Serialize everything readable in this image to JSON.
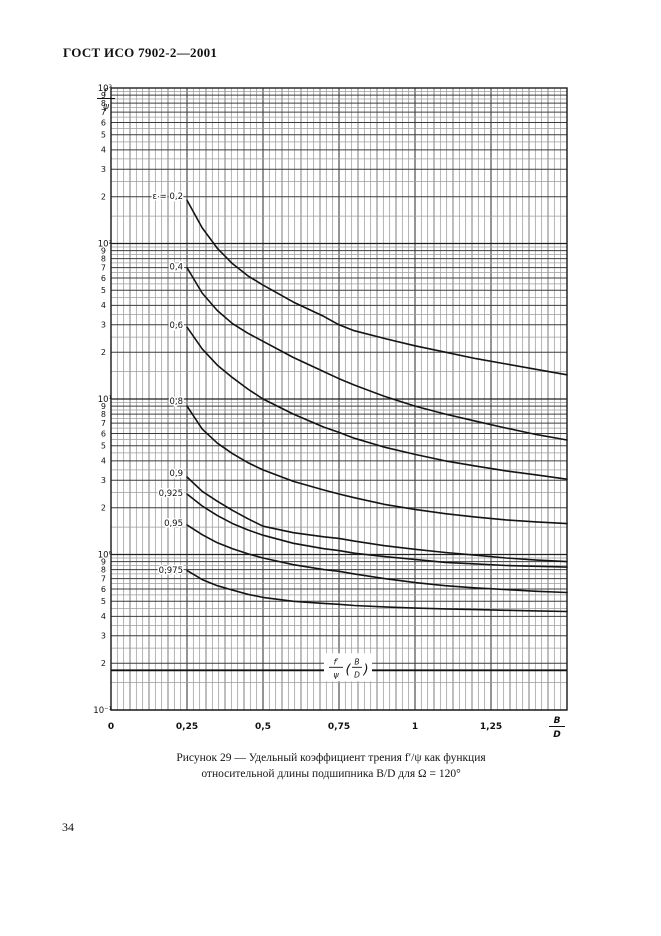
{
  "page": {
    "standard": "ГОСТ ИСО 7902-2—2001",
    "number": "34"
  },
  "caption": {
    "line1": "Рисунок 29 — Удельный коэффициент трения f′/ψ как функция",
    "line2": "относительной длины подшипника B/D для Ω = 120°"
  },
  "chart_data": {
    "type": "line",
    "title": "Рисунок 29 — Удельный коэффициент трения f′/ψ как функция относительной длины подшипника B/D для Ω = 120°",
    "xlabel": "B/D",
    "ylabel": "f′/ψ",
    "x_scale": "linear",
    "y_scale": "log",
    "xlim": [
      0,
      1.5
    ],
    "ylim": [
      0.1,
      1000
    ],
    "grid": true,
    "x_ticks": [
      {
        "b": 0,
        "label": "0"
      },
      {
        "b": 0.25,
        "label": "0,25"
      },
      {
        "b": 0.5,
        "label": "0,5"
      },
      {
        "b": 0.75,
        "label": "0,75"
      },
      {
        "b": 1,
        "label": "1"
      },
      {
        "b": 1.25,
        "label": "1,25"
      }
    ],
    "y_decades": [
      {
        "exp": 3,
        "label": "10³"
      },
      {
        "exp": 2,
        "label": "10²"
      },
      {
        "exp": 1,
        "label": "10¹"
      },
      {
        "exp": 0,
        "label": "10⁰"
      },
      {
        "exp": -1,
        "label": "10⁻¹"
      }
    ],
    "y_minor_digits": [
      9,
      8,
      7,
      6,
      5,
      4,
      3,
      2
    ],
    "y_axis_fraction": {
      "num": "f′",
      "den": "ψ"
    },
    "x_axis_fraction": {
      "num": "B",
      "den": "D"
    },
    "series": [
      {
        "name": "eps-0.2",
        "label": "ε = 0,2",
        "label_v": 202,
        "points": [
          [
            0.25,
            190
          ],
          [
            0.3,
            126
          ],
          [
            0.35,
            93
          ],
          [
            0.4,
            74
          ],
          [
            0.45,
            62
          ],
          [
            0.5,
            54
          ],
          [
            0.6,
            42
          ],
          [
            0.7,
            34
          ],
          [
            0.75,
            30
          ],
          [
            0.8,
            27.5
          ],
          [
            0.9,
            24.5
          ],
          [
            1.0,
            22
          ],
          [
            1.1,
            20
          ],
          [
            1.2,
            18.2
          ],
          [
            1.3,
            16.8
          ],
          [
            1.4,
            15.5
          ],
          [
            1.5,
            14.3
          ]
        ]
      },
      {
        "name": "eps-0.4",
        "label": "0,4",
        "label_v": 71,
        "points": [
          [
            0.25,
            70
          ],
          [
            0.3,
            48
          ],
          [
            0.35,
            37
          ],
          [
            0.4,
            30.5
          ],
          [
            0.45,
            26.5
          ],
          [
            0.5,
            23.5
          ],
          [
            0.6,
            18.5
          ],
          [
            0.7,
            15
          ],
          [
            0.75,
            13.5
          ],
          [
            0.8,
            12.3
          ],
          [
            0.9,
            10.4
          ],
          [
            1.0,
            9.0
          ],
          [
            1.1,
            8.0
          ],
          [
            1.2,
            7.2
          ],
          [
            1.3,
            6.5
          ],
          [
            1.4,
            5.9
          ],
          [
            1.5,
            5.45
          ]
        ]
      },
      {
        "name": "eps-0.6",
        "label": "0,6",
        "label_v": 30,
        "points": [
          [
            0.25,
            29
          ],
          [
            0.3,
            21
          ],
          [
            0.35,
            16.5
          ],
          [
            0.4,
            13.7
          ],
          [
            0.45,
            11.6
          ],
          [
            0.5,
            10
          ],
          [
            0.6,
            8.0
          ],
          [
            0.7,
            6.6
          ],
          [
            0.75,
            6.1
          ],
          [
            0.8,
            5.6
          ],
          [
            0.9,
            4.9
          ],
          [
            1.0,
            4.4
          ],
          [
            1.1,
            4.0
          ],
          [
            1.2,
            3.7
          ],
          [
            1.3,
            3.45
          ],
          [
            1.4,
            3.25
          ],
          [
            1.5,
            3.05
          ]
        ]
      },
      {
        "name": "eps-0.8",
        "label": "0,8",
        "label_v": 9.7,
        "points": [
          [
            0.25,
            9.0
          ],
          [
            0.3,
            6.4
          ],
          [
            0.35,
            5.2
          ],
          [
            0.4,
            4.45
          ],
          [
            0.45,
            3.9
          ],
          [
            0.5,
            3.5
          ],
          [
            0.6,
            2.95
          ],
          [
            0.7,
            2.6
          ],
          [
            0.75,
            2.45
          ],
          [
            0.8,
            2.32
          ],
          [
            0.9,
            2.1
          ],
          [
            1.0,
            1.95
          ],
          [
            1.1,
            1.83
          ],
          [
            1.2,
            1.74
          ],
          [
            1.3,
            1.67
          ],
          [
            1.4,
            1.62
          ],
          [
            1.5,
            1.58
          ]
        ]
      },
      {
        "name": "eps-0.9",
        "label": "0,9",
        "label_v": 3.34,
        "points": [
          [
            0.25,
            3.15
          ],
          [
            0.3,
            2.55
          ],
          [
            0.35,
            2.2
          ],
          [
            0.4,
            1.92
          ],
          [
            0.45,
            1.7
          ],
          [
            0.5,
            1.52
          ],
          [
            0.6,
            1.38
          ],
          [
            0.7,
            1.3
          ],
          [
            0.75,
            1.27
          ],
          [
            0.8,
            1.22
          ],
          [
            0.9,
            1.14
          ],
          [
            1.0,
            1.08
          ],
          [
            1.1,
            1.03
          ],
          [
            1.2,
            0.99
          ],
          [
            1.3,
            0.95
          ],
          [
            1.4,
            0.92
          ],
          [
            1.5,
            0.9
          ]
        ]
      },
      {
        "name": "eps-0.925",
        "label": "0,925",
        "label_v": 2.48,
        "points": [
          [
            0.25,
            2.45
          ],
          [
            0.3,
            2.05
          ],
          [
            0.35,
            1.78
          ],
          [
            0.4,
            1.58
          ],
          [
            0.45,
            1.44
          ],
          [
            0.5,
            1.33
          ],
          [
            0.6,
            1.18
          ],
          [
            0.7,
            1.09
          ],
          [
            0.75,
            1.06
          ],
          [
            0.8,
            1.02
          ],
          [
            0.9,
            0.97
          ],
          [
            1.0,
            0.93
          ],
          [
            1.1,
            0.89
          ],
          [
            1.2,
            0.87
          ],
          [
            1.3,
            0.85
          ],
          [
            1.4,
            0.84
          ],
          [
            1.5,
            0.83
          ]
        ]
      },
      {
        "name": "eps-0.95",
        "label": "0,95",
        "label_v": 1.6,
        "points": [
          [
            0.25,
            1.55
          ],
          [
            0.3,
            1.34
          ],
          [
            0.35,
            1.19
          ],
          [
            0.4,
            1.09
          ],
          [
            0.45,
            1.01
          ],
          [
            0.5,
            0.95
          ],
          [
            0.6,
            0.86
          ],
          [
            0.7,
            0.8
          ],
          [
            0.75,
            0.78
          ],
          [
            0.8,
            0.75
          ],
          [
            0.9,
            0.7
          ],
          [
            1.0,
            0.66
          ],
          [
            1.1,
            0.63
          ],
          [
            1.2,
            0.61
          ],
          [
            1.3,
            0.595
          ],
          [
            1.4,
            0.58
          ],
          [
            1.5,
            0.57
          ]
        ]
      },
      {
        "name": "eps-0.975",
        "label": "0,975",
        "label_v": 0.795,
        "points": [
          [
            0.25,
            0.79
          ],
          [
            0.3,
            0.69
          ],
          [
            0.35,
            0.63
          ],
          [
            0.4,
            0.59
          ],
          [
            0.45,
            0.555
          ],
          [
            0.5,
            0.53
          ],
          [
            0.6,
            0.5
          ],
          [
            0.7,
            0.485
          ],
          [
            0.75,
            0.478
          ],
          [
            0.8,
            0.47
          ],
          [
            0.9,
            0.46
          ],
          [
            1.0,
            0.452
          ],
          [
            1.1,
            0.447
          ],
          [
            1.2,
            0.442
          ],
          [
            1.3,
            0.438
          ],
          [
            1.4,
            0.434
          ],
          [
            1.5,
            0.43
          ]
        ]
      }
    ],
    "reference_line": {
      "value": 0.18,
      "annotation": {
        "num": "f′",
        "den": "ψ",
        "arg_num": "B",
        "arg_den": "D"
      }
    }
  }
}
